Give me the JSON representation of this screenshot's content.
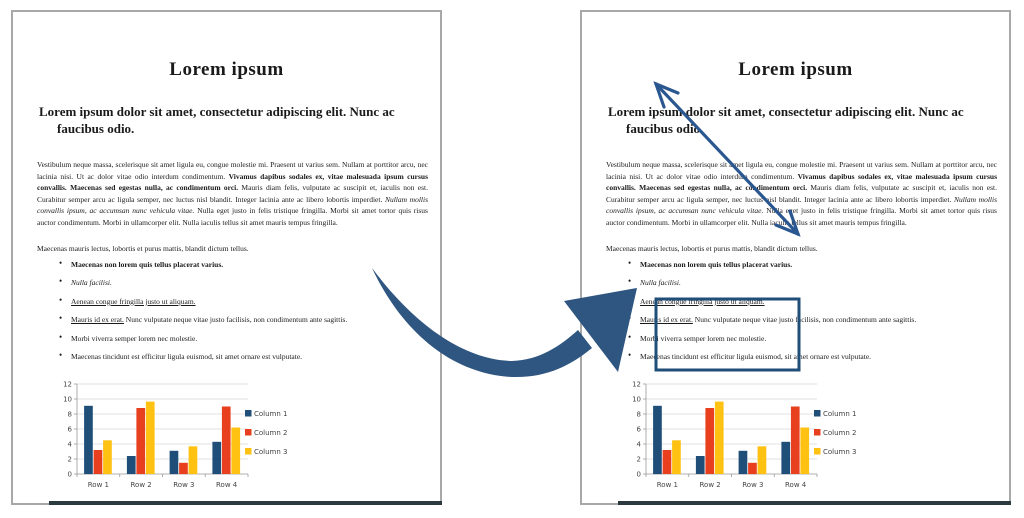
{
  "page": {
    "title": "Lorem ipsum",
    "heading": "Lorem ipsum dolor sit amet, consectetur adipiscing elit. Nunc ac faucibus odio.",
    "paragraph1_segments": [
      {
        "text": "Vestibulum neque massa, scelerisque sit amet ligula eu, congue molestie mi. Praesent ut varius sem. Nullam at porttitor arcu, nec lacinia nisi. Ut ac dolor vitae odio interdum condimentum. ",
        "style": "normal"
      },
      {
        "text": "Vivamus dapibus sodales ex, vitae malesuada ipsum cursus convallis. Maecenas sed egestas nulla, ac condimentum orci. ",
        "style": "bold"
      },
      {
        "text": "Mauris diam felis, vulputate ac suscipit et, iaculis non est. Curabitur semper arcu ac ligula semper, nec luctus nisl blandit. Integer lacinia ante ac libero lobortis imperdiet. ",
        "style": "normal"
      },
      {
        "text": "Nullam mollis convallis ipsum, ac accumsan nunc vehicula vitae. ",
        "style": "italic"
      },
      {
        "text": "Nulla eget justo in felis tristique fringilla. Morbi sit amet tortor quis risus auctor condimentum. Morbi in ullamcorper elit. Nulla iaculis tellus sit amet mauris tempus fringilla.",
        "style": "normal"
      }
    ],
    "paragraph2": "Maecenas mauris lectus, lobortis et purus mattis, blandit dictum tellus.",
    "bullets": [
      {
        "segments": [
          {
            "text": "Maecenas non lorem quis tellus placerat varius.",
            "style": "bold"
          }
        ]
      },
      {
        "segments": [
          {
            "text": "Nulla facilisi.",
            "style": "italic"
          }
        ]
      },
      {
        "segments": [
          {
            "text": "Aenean congue fringilla justo ut aliquam.",
            "style": "underline"
          }
        ]
      },
      {
        "segments": [
          {
            "text": "Mauris id ex erat.",
            "style": "underline"
          },
          {
            "text": " Nunc vulputate neque vitae justo facilisis, non condimentum ante sagittis.",
            "style": "normal"
          }
        ]
      },
      {
        "segments": [
          {
            "text": "Morbi viverra semper lorem nec molestie.",
            "style": "normal"
          }
        ]
      },
      {
        "segments": [
          {
            "text": "Maecenas tincidunt est efficitur ligula euismod, sit amet ornare est vulputate.",
            "style": "normal"
          }
        ]
      }
    ]
  },
  "chart_data": {
    "type": "bar",
    "title": "",
    "categories": [
      "Row 1",
      "Row 2",
      "Row 3",
      "Row 4"
    ],
    "series": [
      {
        "name": "Column 1",
        "color": "#1F4E79",
        "values": [
          9.1,
          2.4,
          3.1,
          4.3
        ]
      },
      {
        "name": "Column 2",
        "color": "#E8401F",
        "values": [
          3.2,
          8.8,
          1.5,
          9.0
        ]
      },
      {
        "name": "Column 3",
        "color": "#FFC213",
        "values": [
          4.5,
          9.65,
          3.7,
          6.2
        ]
      }
    ],
    "xlabel": "",
    "ylabel": "",
    "ylim": [
      0,
      12
    ],
    "yticks": [
      0,
      2,
      4,
      6,
      8,
      10,
      12
    ],
    "grid": true,
    "legend_position": "right"
  },
  "annotations": {
    "curved_arrow_color": "#2F5680",
    "double_arrow_color": "#2B5791",
    "highlight_box_color": "#1F4E79"
  }
}
